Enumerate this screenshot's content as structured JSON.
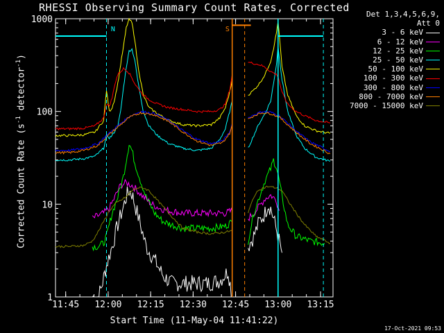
{
  "title": "RHESSI Observing Summary Count Rates, Corrected",
  "legend": {
    "header1": "Det 1,3,4,5,6,9,",
    "header2": "Att 0"
  },
  "footer_stamp": "17-Oct-2021 09:53",
  "chart_data": {
    "type": "line",
    "title": "RHESSI Observing Summary Count Rates, Corrected",
    "xlabel": "Start Time (11-May-04 11:41:22)",
    "ylabel": "Corrected Count Rate (s",
    "ylabel_sup": "-1",
    "ylabel_rest": " detector",
    "ylabel_sup2": "-1",
    "ylabel_end": ")",
    "y_scale": "log",
    "ylim": [
      1,
      1000
    ],
    "xlim_minutes_after_start": [
      0,
      98
    ],
    "x_ticks": [
      {
        "label": "11:45",
        "minute": 3.6
      },
      {
        "label": "12:00",
        "minute": 18.6
      },
      {
        "label": "12:15",
        "minute": 33.6
      },
      {
        "label": "12:30",
        "minute": 48.6
      },
      {
        "label": "12:45",
        "minute": 63.6
      },
      {
        "label": "13:00",
        "minute": 78.6
      },
      {
        "label": "13:15",
        "minute": 93.6
      }
    ],
    "y_ticks": [
      {
        "label": "1",
        "value": 1
      },
      {
        "label": "10",
        "value": 10
      },
      {
        "label": "100",
        "value": 100
      },
      {
        "label": "1000",
        "value": 1000
      }
    ],
    "annotations": [
      {
        "text": "N",
        "minute": 18.6,
        "color": "#00ffff"
      },
      {
        "text": "S",
        "minute": 59.0,
        "color": "#ff8000"
      }
    ],
    "attenuator_bars": [
      {
        "from": 0,
        "to": 18.0,
        "value": 650,
        "color": "#00ffff"
      },
      {
        "from": 62.4,
        "to": 69.0,
        "value": 850,
        "color": "#ff8000"
      },
      {
        "from": 78.6,
        "to": 94.6,
        "value": 650,
        "color": "#00ffff"
      }
    ],
    "vlines": [
      {
        "minute": 18.0,
        "color": "#00ffff",
        "style": "dashed"
      },
      {
        "minute": 62.4,
        "color": "#ff8000",
        "style": "solid"
      },
      {
        "minute": 66.8,
        "color": "#ff8000",
        "style": "dashed"
      },
      {
        "minute": 78.6,
        "color": "#00ffff",
        "style": "solid"
      },
      {
        "minute": 94.6,
        "color": "#00ffff",
        "style": "dashed"
      }
    ],
    "data_gap": [
      62.4,
      68.0
    ],
    "series": [
      {
        "name": "3 - 6 keV",
        "color": "#ffffff",
        "x": [
          13.0,
          15.0,
          16.0,
          17.0,
          18.0,
          20.0,
          22.0,
          24.0,
          25.0,
          26.0,
          27.0,
          28.0,
          30.0,
          32.0,
          35.0,
          38.0,
          41.0,
          45.0,
          50.0,
          54.0,
          58.0,
          61.0,
          62.4,
          68.0,
          70.0,
          72.0,
          74.0,
          75.0,
          76.0,
          77.0,
          78.6,
          80.0
        ],
        "y": [
          1.0,
          1.0,
          1.2,
          1.6,
          2.2,
          3.5,
          6.0,
          9.5,
          12.0,
          14.0,
          13.0,
          10.0,
          6.0,
          3.5,
          2.5,
          1.7,
          1.4,
          1.4,
          1.4,
          1.4,
          1.5,
          1.9,
          1.0,
          3.5,
          4.5,
          6.5,
          8.0,
          10.0,
          9.0,
          7.0,
          4.5,
          3.0
        ]
      },
      {
        "name": "6 - 12 keV",
        "color": "#ff00ff",
        "x": [
          13.0,
          15.0,
          17.0,
          19.0,
          21.0,
          23.0,
          25.0,
          27.0,
          29.0,
          31.0,
          34.0,
          37.0,
          40.0,
          45.0,
          50.0,
          55.0,
          60.0,
          62.4,
          68.0,
          70.0,
          72.0,
          74.0,
          76.0,
          78.0,
          79.0
        ],
        "y": [
          7.0,
          7.5,
          8.0,
          9.0,
          12.0,
          16.0,
          17.0,
          16.0,
          14.0,
          12.0,
          10.0,
          9.0,
          8.5,
          8.0,
          8.0,
          8.0,
          8.0,
          8.5,
          7.0,
          8.0,
          9.5,
          11.5,
          12.5,
          11.0,
          8.5
        ]
      },
      {
        "name": "12 - 25 keV",
        "color": "#00ff00",
        "x": [
          13.0,
          15.0,
          17.0,
          18.0,
          19.0,
          20.0,
          22.0,
          24.0,
          25.0,
          26.0,
          27.0,
          28.0,
          30.0,
          32.0,
          35.0,
          38.0,
          41.0,
          45.0,
          50.0,
          55.0,
          60.0,
          62.4,
          68.0,
          70.0,
          72.0,
          74.0,
          76.0,
          77.0,
          78.0,
          79.0,
          80.0,
          82.0,
          85.0,
          90.0,
          95.0
        ],
        "y": [
          3.5,
          3.5,
          3.8,
          4.5,
          6.0,
          8.0,
          12.0,
          20.0,
          30.0,
          45.0,
          38.0,
          28.0,
          18.0,
          12.0,
          8.0,
          6.5,
          6.0,
          5.5,
          5.5,
          5.5,
          5.8,
          6.5,
          4.0,
          8.0,
          12.0,
          18.0,
          24.0,
          30.0,
          25.0,
          18.0,
          12.0,
          6.0,
          4.5,
          4.0,
          3.8
        ]
      },
      {
        "name": "25 - 50 keV",
        "color": "#00ffff",
        "x": [
          0,
          5.0,
          10.0,
          14.0,
          17.0,
          18.0,
          19.0,
          20.0,
          21.0,
          22.0,
          23.0,
          24.0,
          25.0,
          26.0,
          27.0,
          28.0,
          29.0,
          30.0,
          31.0,
          33.0,
          36.0,
          40.0,
          45.0,
          50.0,
          55.0,
          58.0,
          60.0,
          61.5,
          62.4,
          68.0,
          70.0,
          72.0,
          74.0,
          76.0,
          77.0,
          78.0,
          78.6,
          80.0,
          82.0,
          85.0,
          88.0,
          92.0,
          97.0
        ],
        "y": [
          30.0,
          30.0,
          31.0,
          33.0,
          40.0,
          55.0,
          52.0,
          55.0,
          62.0,
          70.0,
          100.0,
          180.0,
          300.0,
          450.0,
          470.0,
          360.0,
          220.0,
          150.0,
          100.0,
          70.0,
          55.0,
          45.0,
          40.0,
          38.0,
          40.0,
          50.0,
          65.0,
          100.0,
          130.0,
          40.0,
          55.0,
          75.0,
          95.0,
          130.0,
          200.0,
          320.0,
          500.0,
          220.0,
          100.0,
          55.0,
          40.0,
          32.0,
          29.0
        ]
      },
      {
        "name": "50 - 100 keV",
        "color": "#ffff00",
        "x": [
          0,
          5.0,
          10.0,
          14.0,
          17.0,
          18.0,
          19.0,
          20.0,
          21.0,
          22.0,
          23.0,
          24.0,
          25.0,
          26.0,
          27.0,
          28.0,
          29.0,
          30.0,
          31.0,
          33.0,
          36.0,
          40.0,
          45.0,
          50.0,
          55.0,
          58.0,
          60.0,
          61.5,
          62.4,
          68.0,
          70.0,
          72.0,
          74.0,
          76.0,
          77.0,
          78.0,
          78.6,
          80.0,
          82.0,
          85.0,
          88.0,
          92.0,
          97.0
        ],
        "y": [
          55.0,
          55.0,
          56.0,
          60.0,
          80.0,
          170.0,
          100.0,
          110.0,
          140.0,
          200.0,
          320.0,
          500.0,
          800.0,
          1000.0,
          900.0,
          600.0,
          330.0,
          220.0,
          150.0,
          110.0,
          95.0,
          80.0,
          72.0,
          70.0,
          72.0,
          85.0,
          110.0,
          160.0,
          220.0,
          150.0,
          170.0,
          200.0,
          250.0,
          350.0,
          480.0,
          700.0,
          950.0,
          300.0,
          150.0,
          90.0,
          70.0,
          62.0,
          58.0
        ]
      },
      {
        "name": "100 - 300 keV",
        "color": "#ff0000",
        "x": [
          0,
          5.0,
          10.0,
          14.0,
          17.0,
          18.0,
          19.0,
          20.0,
          21.0,
          22.0,
          24.0,
          25.0,
          26.0,
          27.0,
          28.0,
          29.0,
          30.0,
          31.0,
          33.0,
          36.0,
          40.0,
          45.0,
          50.0,
          55.0,
          58.0,
          60.0,
          61.5,
          62.4,
          68.0,
          70.0,
          72.0,
          74.0,
          76.0,
          78.0,
          78.6,
          80.0,
          82.0,
          85.0,
          88.0,
          92.0,
          97.0
        ],
        "y": [
          65.0,
          65.0,
          66.0,
          70.0,
          85.0,
          120.0,
          115.0,
          140.0,
          200.0,
          250.0,
          290.0,
          280.0,
          260.0,
          230.0,
          200.0,
          180.0,
          165.0,
          150.0,
          135.0,
          120.0,
          110.0,
          105.0,
          100.0,
          100.0,
          105.0,
          120.0,
          170.0,
          250.0,
          340.0,
          330.0,
          320.0,
          300.0,
          270.0,
          250.0,
          240.0,
          160.0,
          120.0,
          100.0,
          90.0,
          80.0,
          75.0
        ]
      },
      {
        "name": "300 - 800 keV",
        "color": "#0000ff",
        "x": [
          0,
          5.0,
          10.0,
          15.0,
          18.0,
          22.0,
          26.0,
          30.0,
          35.0,
          40.0,
          45.0,
          50.0,
          55.0,
          59.0,
          61.5,
          62.4,
          68.0,
          70.0,
          73.0,
          76.0,
          79.0,
          82.0,
          86.0,
          90.0,
          94.0,
          97.0
        ],
        "y": [
          38.0,
          38.0,
          40.0,
          45.0,
          55.0,
          70.0,
          88.0,
          100.0,
          95.0,
          80.0,
          62.0,
          50.0,
          45.0,
          48.0,
          60.0,
          75.0,
          85.0,
          92.0,
          100.0,
          98.0,
          90.0,
          75.0,
          58.0,
          47.0,
          41.0,
          37.0
        ]
      },
      {
        "name": "800 - 7000 keV",
        "color": "#ff8000",
        "x": [
          0,
          5.0,
          10.0,
          15.0,
          18.0,
          22.0,
          26.0,
          30.0,
          35.0,
          40.0,
          45.0,
          50.0,
          55.0,
          59.0,
          61.5,
          62.4,
          68.0,
          70.0,
          73.0,
          76.0,
          79.0,
          82.0,
          86.0,
          90.0,
          94.0,
          97.0
        ],
        "y": [
          36.0,
          36.0,
          38.0,
          43.0,
          53.0,
          68.0,
          86.0,
          97.0,
          92.0,
          78.0,
          60.0,
          48.0,
          43.0,
          46.0,
          58.0,
          72.0,
          82.0,
          90.0,
          97.0,
          95.0,
          87.0,
          72.0,
          56.0,
          45.0,
          39.0,
          35.0
        ]
      },
      {
        "name": "7000 - 15000 keV",
        "color": "#808000",
        "x": [
          0,
          5.0,
          10.0,
          13.0,
          15.0,
          17.0,
          19.0,
          21.0,
          23.0,
          25.0,
          27.0,
          29.0,
          31.0,
          33.0,
          36.0,
          40.0,
          45.0,
          50.0,
          55.0,
          60.0,
          62.4,
          68.0,
          70.0,
          72.0,
          75.0,
          78.0,
          80.0,
          82.0,
          85.0,
          88.0,
          92.0,
          97.0
        ],
        "y": [
          3.5,
          3.5,
          3.6,
          4.0,
          5.0,
          6.5,
          8.5,
          10.0,
          11.0,
          12.0,
          14.0,
          15.0,
          15.0,
          14.0,
          11.0,
          8.0,
          5.5,
          5.0,
          4.8,
          5.0,
          5.2,
          8.0,
          12.0,
          14.5,
          15.5,
          15.0,
          14.0,
          11.0,
          8.0,
          6.0,
          4.5,
          3.8
        ]
      }
    ]
  }
}
